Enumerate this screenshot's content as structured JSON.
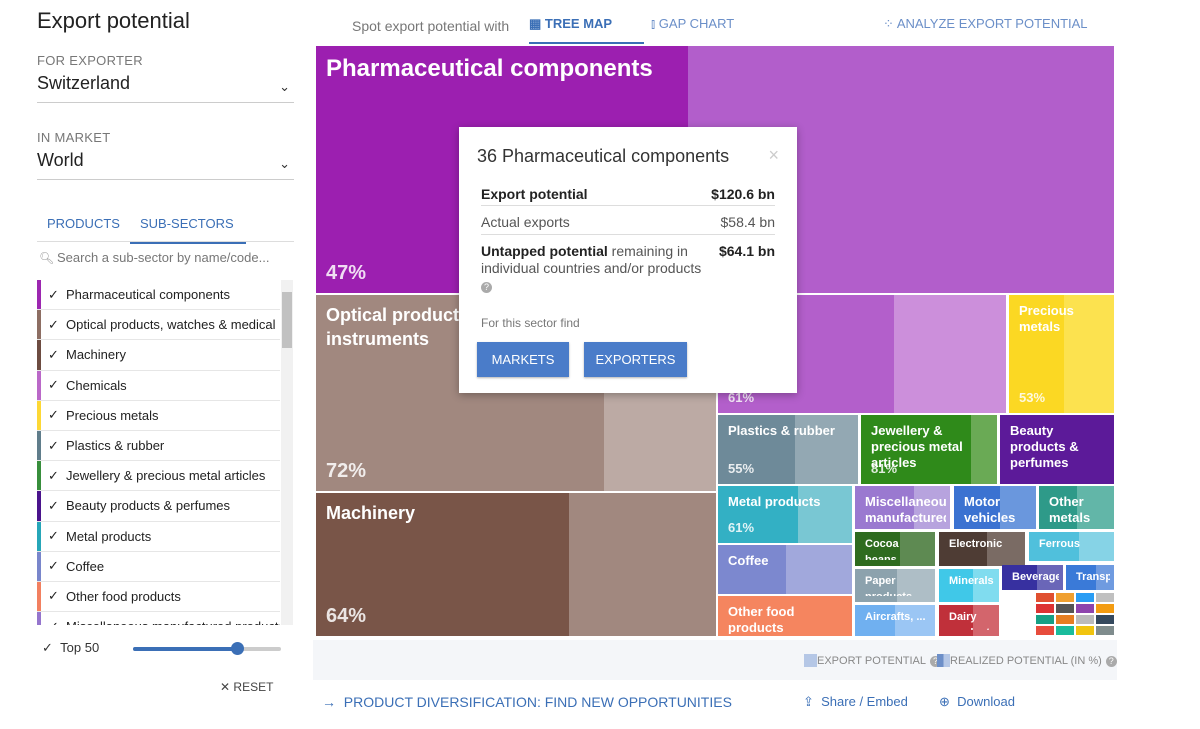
{
  "sidebar": {
    "title": "Export potential",
    "exporter_label": "FOR EXPORTER",
    "exporter_value": "Switzerland",
    "market_label": "IN MARKET",
    "market_value": "World",
    "tabs": {
      "products": "PRODUCTS",
      "subsectors": "SUB-SECTORS"
    },
    "search_placeholder": "Search a sub-sector by name/code...",
    "items": [
      {
        "label": "Pharmaceutical components",
        "color": "#9c27b0"
      },
      {
        "label": "Optical products, watches & medical",
        "color": "#8d6e63"
      },
      {
        "label": "Machinery",
        "color": "#6d4c41"
      },
      {
        "label": "Chemicals",
        "color": "#ba68c8"
      },
      {
        "label": "Precious metals",
        "color": "#fdd835"
      },
      {
        "label": "Plastics & rubber",
        "color": "#607d8b"
      },
      {
        "label": "Jewellery & precious metal articles",
        "color": "#388e3c"
      },
      {
        "label": "Beauty products & perfumes",
        "color": "#4a148c"
      },
      {
        "label": "Metal products",
        "color": "#26a6b8"
      },
      {
        "label": "Coffee",
        "color": "#7986cb"
      },
      {
        "label": "Other food products",
        "color": "#f28060"
      },
      {
        "label": "Miscellaneous manufactured products",
        "color": "#9575cd"
      }
    ],
    "top_label": "Top 50",
    "top_slider_fraction": 0.7,
    "reset_label": "RESET"
  },
  "header": {
    "spot_label": "Spot export potential with",
    "treemap_label": "TREE MAP",
    "gapchart_label": "GAP CHART",
    "analyze_label": "ANALYZE EXPORT POTENTIAL"
  },
  "treemap": {
    "cells": [
      {
        "name": "Pharmaceutical components",
        "pct": "47%",
        "color": "#9c1fb0",
        "lite": "#b25ecb"
      },
      {
        "name": "Optical products, watches & medical instruments",
        "pct": "72%",
        "color": "#a1887f",
        "lite": "#bcaaa4"
      },
      {
        "name": "Machinery",
        "pct": "64%",
        "color": "#795548",
        "lite": "#a1887f"
      },
      {
        "name": "Chemicals",
        "pct": "61%",
        "color": "#b35fcb",
        "lite": "#cc8fdb"
      },
      {
        "name": "Precious metals",
        "pct": "53%",
        "color": "#fbd823",
        "lite": "#fce24f"
      },
      {
        "name": "Plastics & rubber",
        "pct": "55%",
        "color": "#6e8a99",
        "lite": "#93a8b3"
      },
      {
        "name": "Jewellery & precious metal articles",
        "pct": "81%",
        "color": "#2f8a1a",
        "lite": "#6aaa55"
      },
      {
        "name": "Beauty products & perfumes",
        "pct": "",
        "color": "#5c1a99",
        "lite": "#7a4aae"
      },
      {
        "name": "Metal products",
        "pct": "61%",
        "color": "#33b0c4",
        "lite": "#79c7d3"
      },
      {
        "name": "Coffee",
        "pct": "",
        "color": "#7c88cf",
        "lite": "#a1a8dc"
      },
      {
        "name": "Other food products",
        "pct": "",
        "color": "#f5855f",
        "lite": "#f7a88d"
      },
      {
        "name": "Miscellaneous manufactured products",
        "pct": "",
        "color": "#9a79d0",
        "lite": "#b7a3de"
      },
      {
        "name": "Motor vehicles",
        "pct": "",
        "color": "#3b72d1",
        "lite": "#6a97dd"
      },
      {
        "name": "Other metals",
        "pct": "",
        "color": "#2e9a89",
        "lite": "#62b6a8"
      },
      {
        "name": "Cocoa beans",
        "pct": "",
        "color": "#2e6b1f",
        "lite": "#5e8a52"
      },
      {
        "name": "Electronic",
        "pct": "",
        "color": "#4e3c34",
        "lite": "#7a6b64"
      },
      {
        "name": "Ferrous metals",
        "pct": "",
        "color": "#50c0dc",
        "lite": "#86d3e6"
      },
      {
        "name": "Paper products",
        "pct": "",
        "color": "#8ca2ad",
        "lite": "#aebec6"
      },
      {
        "name": "Minerals",
        "pct": "",
        "color": "#40c8e8",
        "lite": "#80dcef"
      },
      {
        "name": "Beverages",
        "pct": "",
        "color": "#3730a0",
        "lite": "#6a66b8"
      },
      {
        "name": "Transport",
        "pct": "",
        "color": "#3a7ad8",
        "lite": "#6f9be0"
      },
      {
        "name": "Aircrafts, ...",
        "pct": "",
        "color": "#70b0f0",
        "lite": "#9bc6f4"
      },
      {
        "name": "Dairy products",
        "pct": "",
        "color": "#c0303a",
        "lite": "#d3656c"
      }
    ]
  },
  "popup": {
    "title": "36 Pharmaceutical components",
    "close": "×",
    "export_potential_label": "Export potential",
    "export_potential_value": "$120.6 bn",
    "actual_label": "Actual exports",
    "actual_value": "$58.4 bn",
    "untapped_label": "Untapped potential",
    "untapped_suffix": " remaining in individual countries and/or products",
    "untapped_value": "$64.1 bn",
    "help": "?",
    "sector_find": "For this sector find",
    "markets_button": "MARKETS",
    "exporters_button": "EXPORTERS"
  },
  "legend": {
    "export_potential": "EXPORT POTENTIAL",
    "realized": "REALIZED POTENTIAL (IN %)",
    "help": "?"
  },
  "footer": {
    "diversification": "PRODUCT DIVERSIFICATION: FIND NEW OPPORTUNITIES",
    "share": "Share / Embed",
    "download": "Download"
  }
}
